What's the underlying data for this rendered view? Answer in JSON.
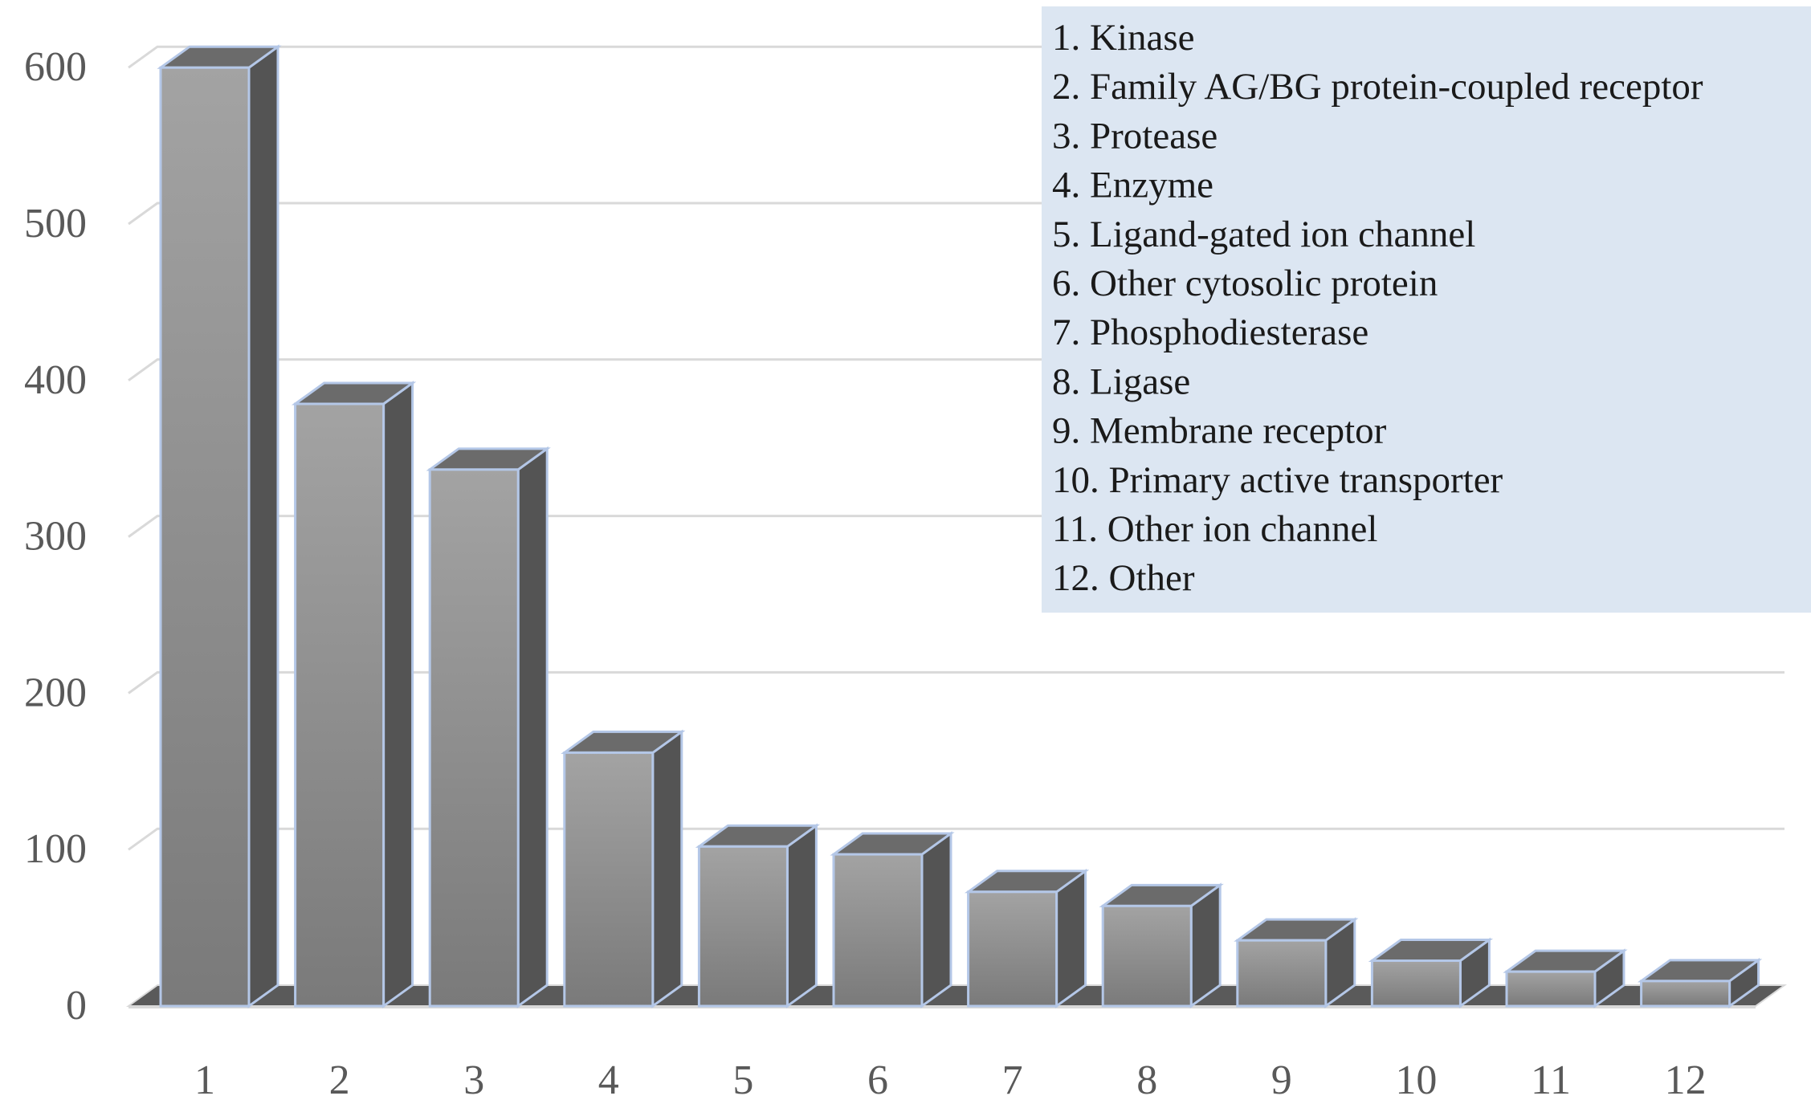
{
  "chart_data": {
    "type": "bar",
    "style": "3d-column",
    "categories": [
      "1",
      "2",
      "3",
      "4",
      "5",
      "6",
      "7",
      "8",
      "9",
      "10",
      "11",
      "12"
    ],
    "values": [
      600,
      385,
      343,
      162,
      102,
      97,
      73,
      64,
      42,
      29,
      22,
      16
    ],
    "ylim": [
      0,
      600
    ],
    "yticks": [
      0,
      100,
      200,
      300,
      400,
      500,
      600
    ],
    "grid": true,
    "legend_placement": "top-right",
    "legend_entries": [
      "1. Kinase",
      "2. Family AG/BG protein-coupled receptor",
      "3. Protease",
      "4. Enzyme",
      "5. Ligand-gated ion channel",
      "6. Other cytosolic protein",
      "7. Phosphodiesterase",
      "8. Ligase",
      "9. Membrane receptor",
      "10. Primary active transporter",
      "11. Other ion channel",
      "12. Other"
    ],
    "colors": {
      "bar_front": "#8c8c8c",
      "bar_side": "#545454",
      "bar_top": "#6b6b6b",
      "bar_outline": "#b4c7e7",
      "gridline": "#d9d9d9",
      "legend_background": "#dce6f2"
    }
  }
}
